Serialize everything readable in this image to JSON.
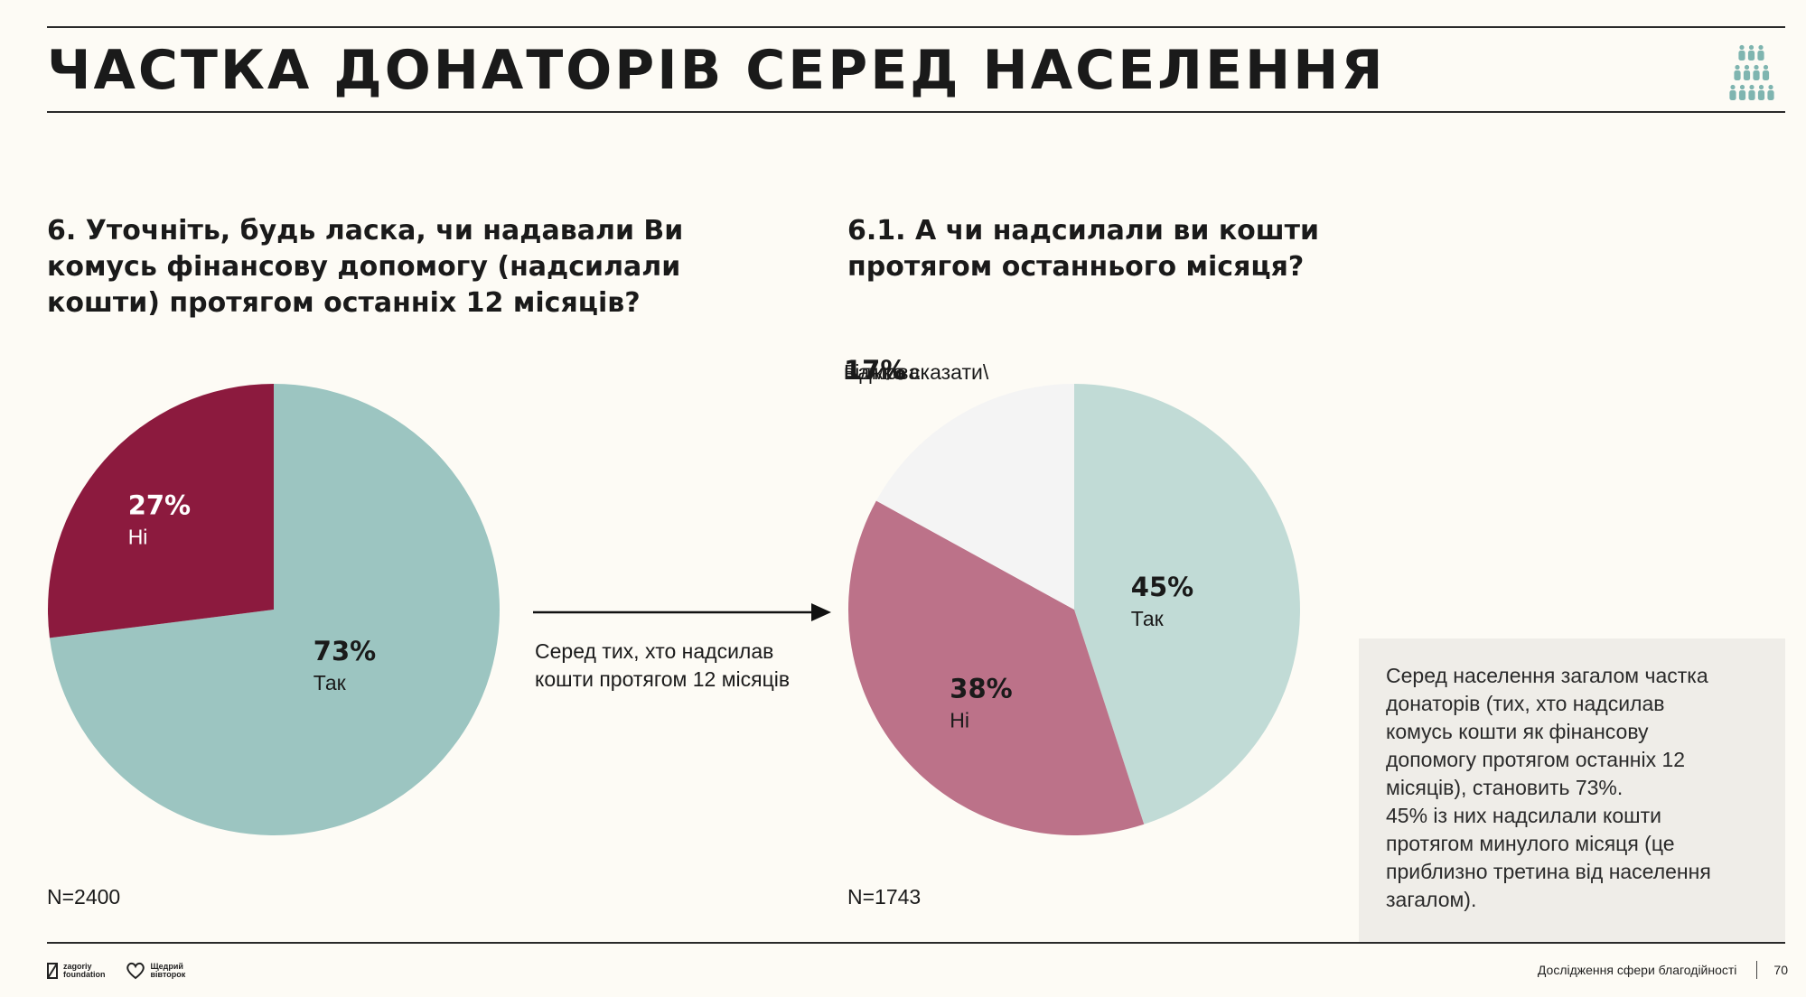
{
  "header": {
    "title": "ЧАСТКА ДОНАТОРІВ СЕРЕД НАСЕЛЕННЯ"
  },
  "chart_data": [
    {
      "type": "pie",
      "title": "6. Уточніть, будь ласка, чи надавали Ви комусь фінансову допомогу (надсилали кошти) протягом останніх 12 місяців?",
      "slices": [
        {
          "label": "Так",
          "value": 73,
          "display": "73%",
          "color": "#9cc5c1"
        },
        {
          "label": "Ні",
          "value": 27,
          "display": "27%",
          "color": "#8c1a3e"
        }
      ],
      "n": "N=2400"
    },
    {
      "type": "pie",
      "title": "6.1. А чи надсилали ви кошти протягом останнього місяця?",
      "slices": [
        {
          "label": "Так",
          "value": 45,
          "display": "45%",
          "color": "#c1dbd6"
        },
        {
          "label": "Ні",
          "value": 38,
          "display": "38%",
          "color": "#bc7289"
        },
        {
          "label_lines": [
            "Важко сказати\\",
            "відмова"
          ],
          "value": 17,
          "display": "17%",
          "color": "#f4f4f4"
        }
      ],
      "n": "N=1743"
    }
  ],
  "transition": {
    "caption_lines": [
      "Серед тих, хто надсилав",
      "кошти протягом 12 місяців"
    ]
  },
  "note": {
    "lines": [
      "Серед населення загалом частка",
      "донаторів (тих, хто надсилав",
      "комусь кошти як фінансову",
      "допомогу протягом останніх 12",
      "місяців), становить 73%.",
      "45% із них надсилали кошти",
      "протягом минулого місяця (це",
      "приблизно третина від населення",
      "загалом)."
    ]
  },
  "footer": {
    "logo1_lines": [
      "zagoriy",
      "foundation"
    ],
    "logo2_lines": [
      "Щедрий",
      "вівторок"
    ],
    "report_title": "Дослідження сфери благодійності",
    "page_number": "70"
  },
  "icons": [
    "people-pyramid-icon",
    "arrow-right-icon"
  ],
  "colors": {
    "accent_dark": "#8c1a3e",
    "accent_teal": "#9cc5c1"
  }
}
